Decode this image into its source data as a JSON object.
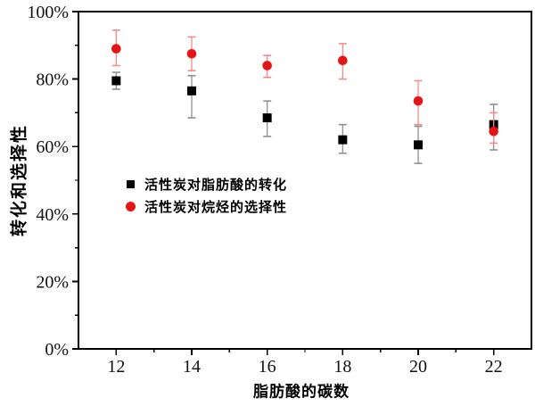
{
  "chart_data": {
    "type": "scatter",
    "title": "",
    "xlabel": "脂肪酸的碳数",
    "ylabel": "转化和选择性",
    "xlim": [
      11,
      23
    ],
    "ylim": [
      0,
      100
    ],
    "grid": false,
    "frame": true,
    "legend_position": "inside-left-middle",
    "x": [
      12,
      14,
      16,
      18,
      20,
      22
    ],
    "x_major_ticks": [
      12,
      14,
      16,
      18,
      20,
      22
    ],
    "x_minor_ticks": [
      13,
      15,
      17,
      19,
      21
    ],
    "y_major_ticks": [
      0,
      20,
      40,
      60,
      80,
      100
    ],
    "y_minor_ticks": [
      10,
      30,
      50,
      70,
      90
    ],
    "y_tick_suffix": "%",
    "series": [
      {
        "name": "活性炭对脂肪酸的转化",
        "marker": "square",
        "color": "#000000",
        "error_color": "#909090",
        "values": [
          79.5,
          76.5,
          68.5,
          62,
          60.5,
          66.5
        ],
        "err_up": [
          2.5,
          4.5,
          5,
          4.5,
          5.5,
          6
        ],
        "err_down": [
          2.5,
          8,
          5.5,
          4,
          5.5,
          7.5
        ]
      },
      {
        "name": "活性炭对烷烃的选择性",
        "marker": "circle",
        "color": "#e51515",
        "error_color": "#f28b8b",
        "values": [
          89,
          87.5,
          84,
          85.5,
          73.5,
          64.5
        ],
        "err_up": [
          5.5,
          5,
          3,
          5,
          6,
          5.5
        ],
        "err_down": [
          5,
          5,
          3.5,
          5.5,
          7,
          3.5
        ]
      }
    ]
  }
}
